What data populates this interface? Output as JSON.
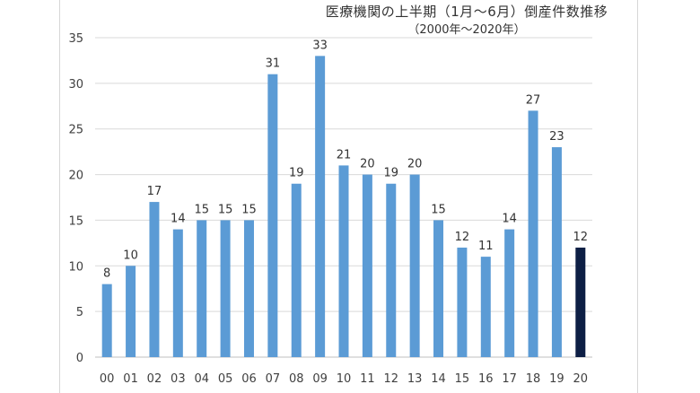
{
  "chart_data": {
    "type": "bar",
    "title": "医療機関の上半期（1月～6月）倒産件数推移",
    "subtitle": "（2000年～2020年）",
    "xlabel": "",
    "ylabel": "",
    "categories": [
      "00",
      "01",
      "02",
      "03",
      "04",
      "05",
      "06",
      "07",
      "08",
      "09",
      "10",
      "11",
      "12",
      "13",
      "14",
      "15",
      "16",
      "17",
      "18",
      "19",
      "20"
    ],
    "values": [
      8,
      10,
      17,
      14,
      15,
      15,
      15,
      31,
      19,
      33,
      21,
      20,
      19,
      20,
      15,
      12,
      11,
      14,
      27,
      23,
      12
    ],
    "ylim": [
      0,
      35
    ],
    "yticks": [
      0,
      5,
      10,
      15,
      20,
      25,
      30,
      35
    ],
    "grid": true,
    "legend": "none",
    "colors": {
      "bar": "#5b9bd5",
      "highlight": "#0d1f45",
      "grid": "#d9d9d9"
    },
    "highlight_index": 20
  }
}
